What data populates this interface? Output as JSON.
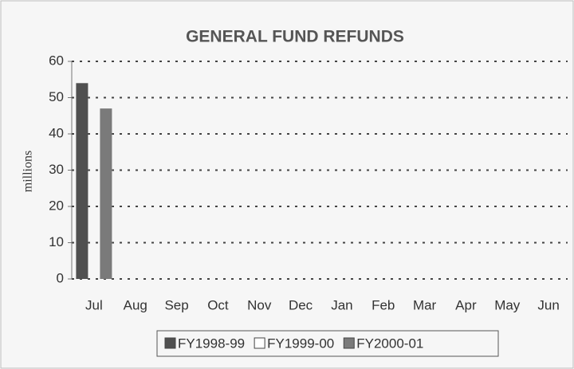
{
  "chart_data": {
    "type": "bar",
    "title": "GENERAL FUND REFUNDS",
    "y_label": "millions",
    "categories": [
      "Jul",
      "Aug",
      "Sep",
      "Oct",
      "Nov",
      "Dec",
      "Jan",
      "Feb",
      "Mar",
      "Apr",
      "May",
      "Jun"
    ],
    "series": [
      {
        "name": "FY1998-99",
        "color": "#505050",
        "values": [
          54,
          null,
          null,
          null,
          null,
          null,
          null,
          null,
          null,
          null,
          null,
          null
        ]
      },
      {
        "name": "FY1999-00",
        "color": "#ffffff",
        "values": [
          null,
          null,
          null,
          null,
          null,
          null,
          null,
          null,
          null,
          null,
          null,
          null
        ]
      },
      {
        "name": "FY2000-01",
        "color": "#7a7a7a",
        "values": [
          47,
          null,
          null,
          null,
          null,
          null,
          null,
          null,
          null,
          null,
          null,
          null
        ]
      }
    ],
    "ylim": [
      0,
      60
    ],
    "yticks": [
      0,
      10,
      20,
      30,
      40,
      50,
      60
    ],
    "grid": true,
    "legend": "bottom"
  }
}
